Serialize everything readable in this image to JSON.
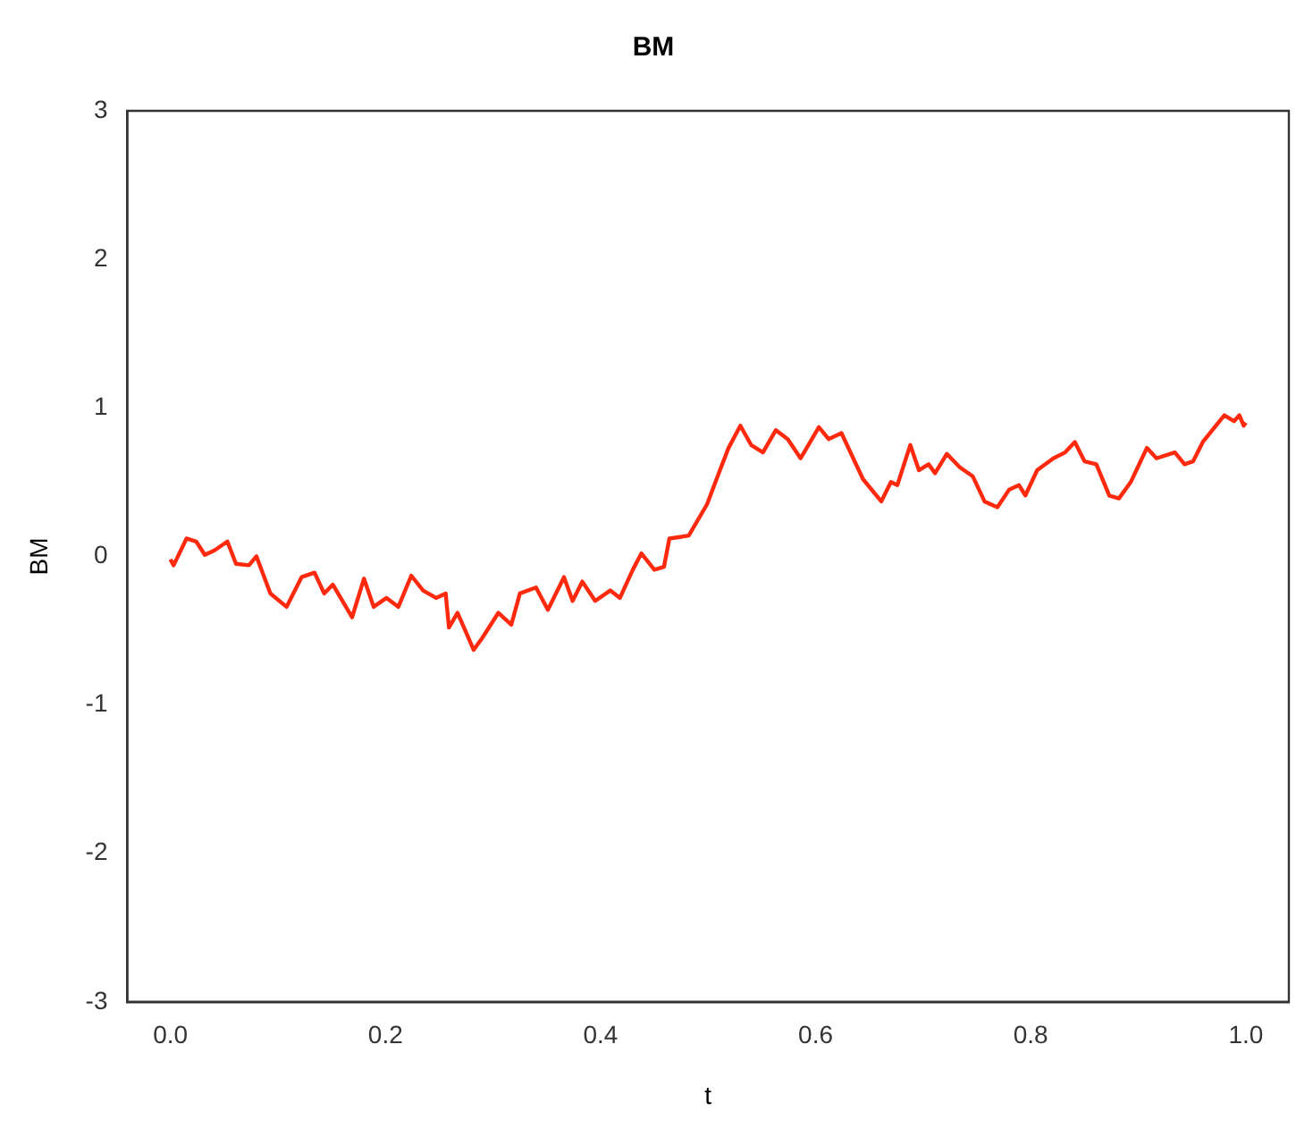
{
  "chart_data": {
    "type": "line",
    "title": "BM",
    "xlabel": "t",
    "ylabel": "BM",
    "xlim": [
      -0.04,
      1.04
    ],
    "ylim": [
      -3,
      3
    ],
    "xticks": [
      {
        "value": 0,
        "label": "0.0"
      },
      {
        "value": 0.2,
        "label": "0.2"
      },
      {
        "value": 0.4,
        "label": "0.4"
      },
      {
        "value": 0.6,
        "label": "0.6"
      },
      {
        "value": 0.8,
        "label": "0.8"
      },
      {
        "value": 1,
        "label": "1.0"
      }
    ],
    "yticks": [
      -3,
      -2,
      -1,
      0,
      1,
      2,
      3
    ],
    "grid": false,
    "legend": false,
    "marker": "none",
    "line_style": "solid",
    "series": [
      {
        "color": "#ff2a0e",
        "x": [
          0,
          0.003,
          0.015,
          0.024,
          0.032,
          0.041,
          0.053,
          0.061,
          0.073,
          0.08,
          0.093,
          0.108,
          0.122,
          0.134,
          0.143,
          0.151,
          0.169,
          0.18,
          0.189,
          0.201,
          0.212,
          0.224,
          0.235,
          0.247,
          0.256,
          0.259,
          0.267,
          0.276,
          0.282,
          0.29,
          0.305,
          0.317,
          0.325,
          0.34,
          0.351,
          0.366,
          0.374,
          0.383,
          0.395,
          0.409,
          0.418,
          0.43,
          0.438,
          0.45,
          0.459,
          0.464,
          0.482,
          0.499,
          0.511,
          0.519,
          0.53,
          0.54,
          0.551,
          0.563,
          0.574,
          0.586,
          0.603,
          0.612,
          0.624,
          0.644,
          0.661,
          0.67,
          0.676,
          0.688,
          0.696,
          0.705,
          0.711,
          0.722,
          0.734,
          0.746,
          0.757,
          0.769,
          0.78,
          0.789,
          0.795,
          0.806,
          0.821,
          0.832,
          0.841,
          0.85,
          0.861,
          0.873,
          0.882,
          0.893,
          0.908,
          0.917,
          0.934,
          0.943,
          0.951,
          0.96,
          0.98,
          0.989,
          0.994,
          0.998,
          1
        ],
        "values": [
          -0.02,
          -0.06,
          0.12,
          0.1,
          0.01,
          0.04,
          0.1,
          -0.05,
          -0.06,
          0,
          -0.25,
          -0.34,
          -0.14,
          -0.11,
          -0.25,
          -0.19,
          -0.41,
          -0.15,
          -0.34,
          -0.28,
          -0.34,
          -0.13,
          -0.23,
          -0.28,
          -0.25,
          -0.48,
          -0.38,
          -0.53,
          -0.63,
          -0.55,
          -0.38,
          -0.46,
          -0.25,
          -0.21,
          -0.36,
          -0.14,
          -0.3,
          -0.17,
          -0.3,
          -0.23,
          -0.28,
          -0.09,
          0.02,
          -0.09,
          -0.07,
          0.12,
          0.14,
          0.35,
          0.58,
          0.73,
          0.88,
          0.75,
          0.7,
          0.85,
          0.79,
          0.66,
          0.87,
          0.79,
          0.83,
          0.52,
          0.37,
          0.5,
          0.48,
          0.75,
          0.58,
          0.62,
          0.56,
          0.69,
          0.6,
          0.54,
          0.37,
          0.33,
          0.45,
          0.48,
          0.41,
          0.58,
          0.66,
          0.7,
          0.77,
          0.64,
          0.62,
          0.41,
          0.39,
          0.5,
          0.73,
          0.66,
          0.7,
          0.62,
          0.64,
          0.77,
          0.95,
          0.91,
          0.95,
          0.88,
          0.9
        ]
      }
    ]
  }
}
